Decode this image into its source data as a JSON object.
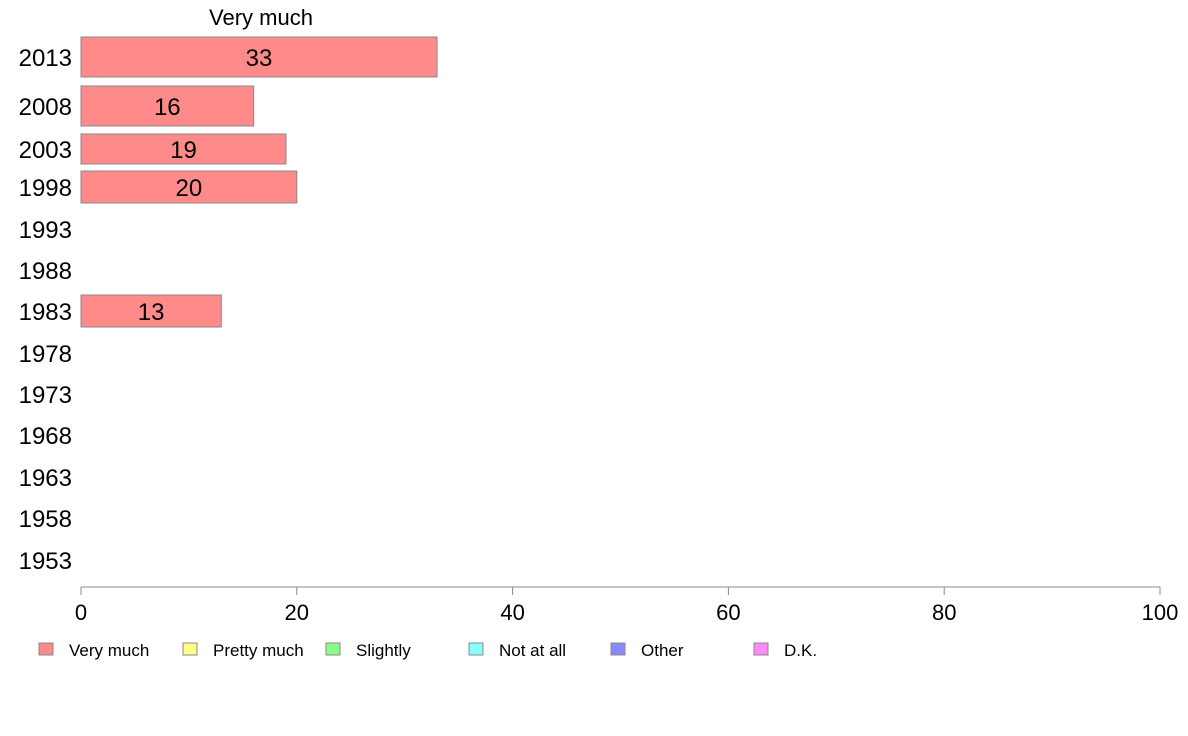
{
  "chart_data": {
    "type": "bar",
    "orientation": "horizontal",
    "title": "Very much",
    "categories": [
      "2013",
      "2008",
      "2003",
      "1998",
      "1993",
      "1988",
      "1983",
      "1978",
      "1973",
      "1968",
      "1963",
      "1958",
      "1953"
    ],
    "series": [
      {
        "name": "Very much",
        "values": [
          33,
          16,
          19,
          20,
          null,
          null,
          13,
          null,
          null,
          null,
          null,
          null,
          null
        ]
      }
    ],
    "xlim": [
      0,
      100
    ],
    "xticks": [
      0,
      20,
      40,
      60,
      80,
      100
    ],
    "grid": false,
    "legend": {
      "placement": "bottom",
      "items": [
        {
          "label": "Very much",
          "color": "#ff8a8a"
        },
        {
          "label": "Pretty much",
          "color": "#ffff88"
        },
        {
          "label": "Slightly",
          "color": "#88ff88"
        },
        {
          "label": "Not at all",
          "color": "#88ffff"
        },
        {
          "label": "Other",
          "color": "#8888ff"
        },
        {
          "label": "D.K.",
          "color": "#ff88ff"
        }
      ]
    },
    "bar_color": "#ff8a8a",
    "bar_border": "#888888"
  }
}
